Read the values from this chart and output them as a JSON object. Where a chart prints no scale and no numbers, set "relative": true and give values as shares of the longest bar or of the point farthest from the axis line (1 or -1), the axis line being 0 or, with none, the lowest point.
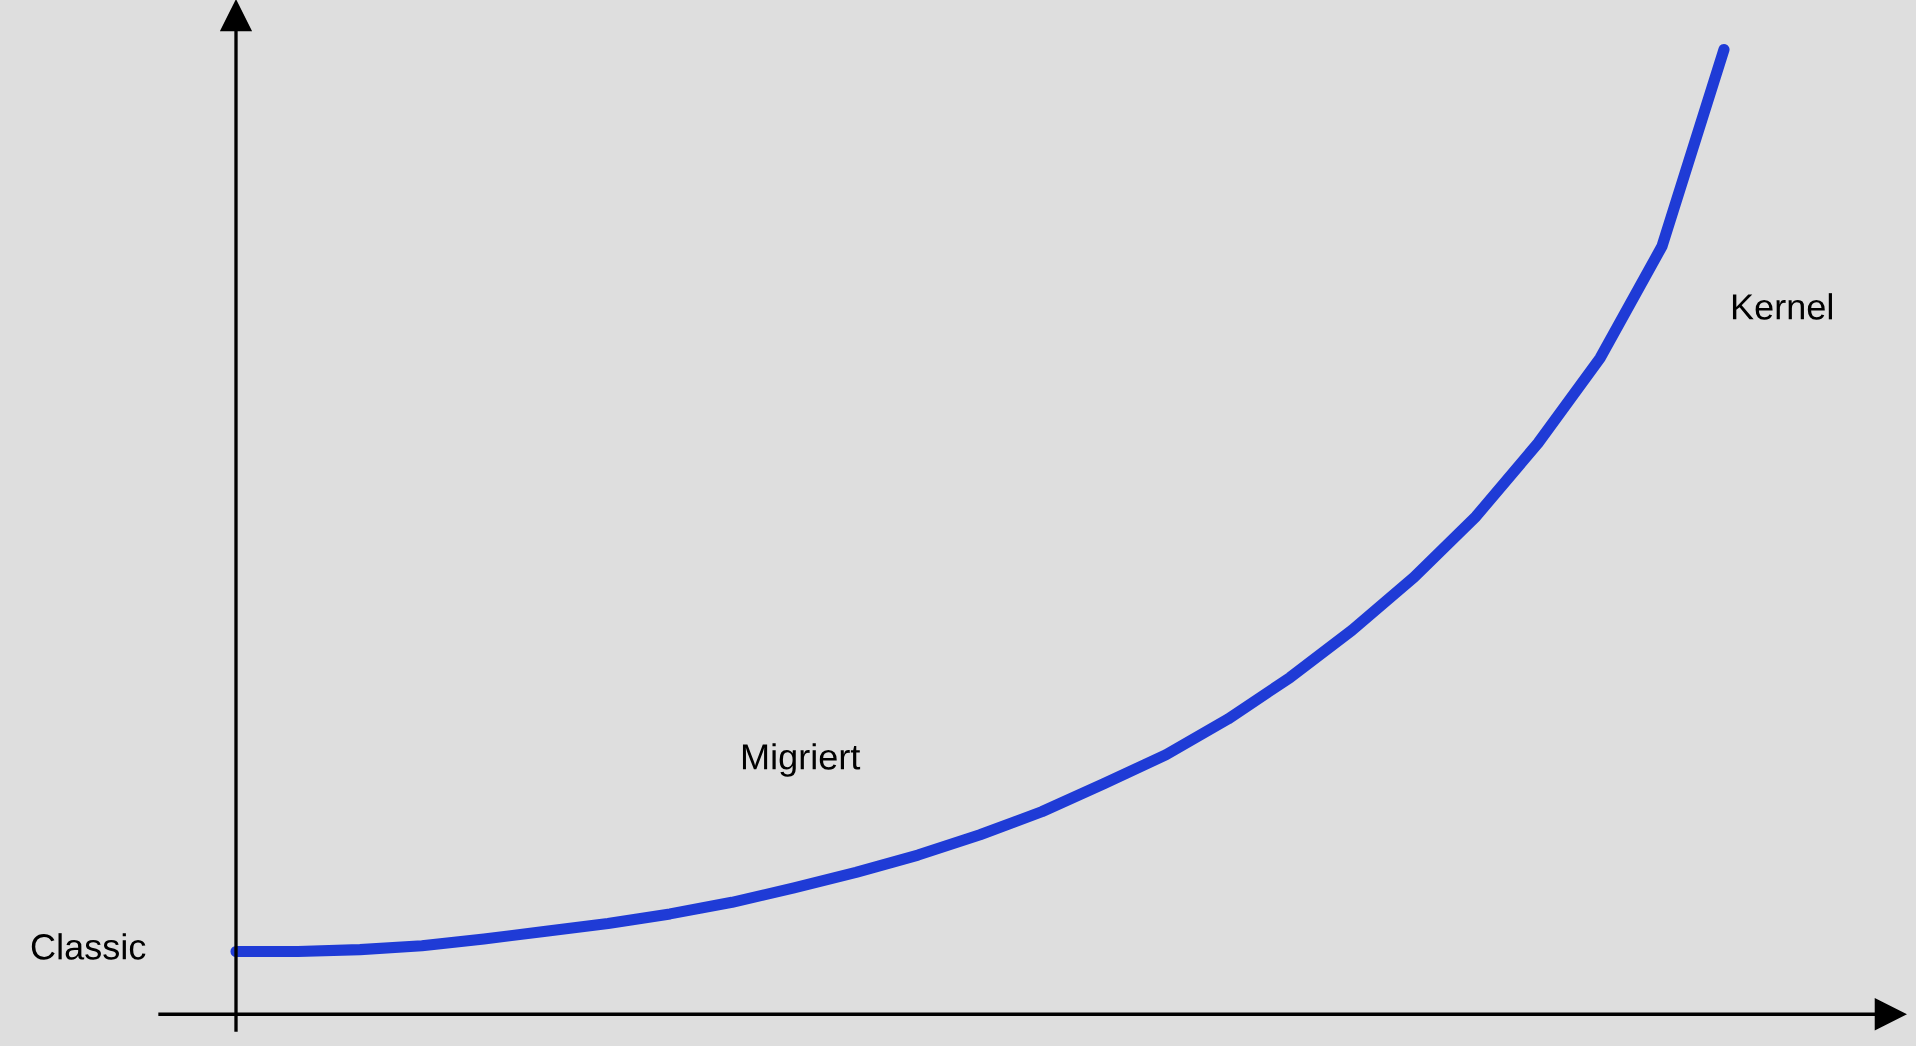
{
  "chart_data": {
    "type": "line",
    "relative": true,
    "categories": [
      null,
      null,
      null,
      null,
      null,
      null,
      null,
      null,
      null,
      null,
      null,
      null,
      null,
      null,
      null,
      null,
      null,
      null,
      null,
      null,
      null,
      null,
      null,
      null,
      null
    ],
    "series": [
      {
        "color": "#1f3bd6",
        "values": [
          0.065,
          0.065,
          0.067,
          0.071,
          0.078,
          0.086,
          0.094,
          0.104,
          0.116,
          0.131,
          0.147,
          0.165,
          0.186,
          0.21,
          0.239,
          0.269,
          0.306,
          0.349,
          0.398,
          0.453,
          0.516,
          0.592,
          0.68,
          0.796,
          1
        ]
      }
    ],
    "annotations": [
      "Classic",
      "Migriert",
      "Kernel"
    ],
    "legend": false,
    "marker": "none",
    "line_style": "solid"
  }
}
